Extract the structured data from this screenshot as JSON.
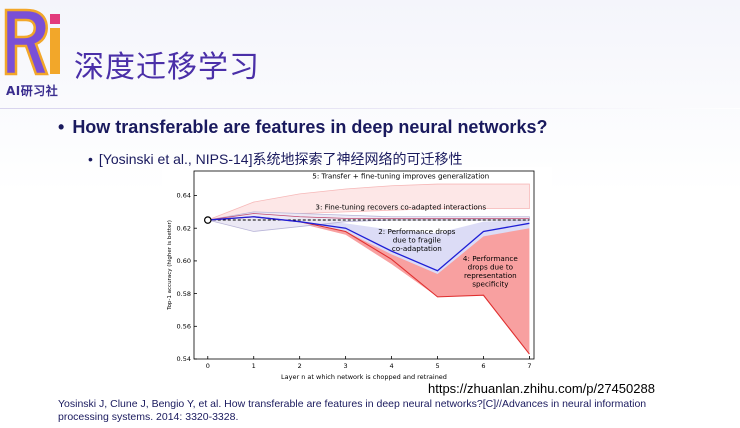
{
  "header": {
    "logo_sub": "AI研习社",
    "title": "深度迁移学习"
  },
  "bullets": {
    "main": "How transferable are features in deep neural networks?",
    "sub": "[Yosinski et al., NIPS-14]系统地探索了神经网络的可迁移性"
  },
  "url": "https://zhuanlan.zhihu.com/p/27450288",
  "citation": "Yosinski J, Clune J, Bengio Y, et al. How transferable are features in deep neural networks?[C]//Advances in neural information processing systems. 2014: 3320-3328.",
  "colors": {
    "title": "#4a2fa8",
    "bullet": "#1a1a5e",
    "red_line": "#e03030",
    "red_fill": "#f8a0a0",
    "blue_line": "#1f1fd6",
    "blue_fill": "#dcdcf6"
  },
  "chart_data": {
    "type": "line",
    "xlabel": "Layer n at which network is chopped and retrained",
    "ylabel": "Top-1 accuracy (higher is better)",
    "xlim": [
      -0.3,
      7.1
    ],
    "ylim": [
      0.54,
      0.655
    ],
    "xticks": [
      0,
      1,
      2,
      3,
      4,
      5,
      6,
      7
    ],
    "yticks": [
      0.54,
      0.56,
      0.58,
      0.6,
      0.62,
      0.64
    ],
    "ytick_labels": [
      "0.54",
      "0.56",
      "0.58",
      "0.60",
      "0.62",
      "0.64"
    ],
    "baseline": 0.625,
    "series": [
      {
        "x": [
          0,
          1,
          2,
          3,
          4,
          5,
          6,
          7
        ],
        "upper": [
          0.625,
          0.636,
          0.641,
          0.644,
          0.646,
          0.647,
          0.647,
          0.647
        ],
        "lower": [
          0.625,
          0.628,
          0.629,
          0.63,
          0.631,
          0.632,
          0.632,
          0.632
        ]
      },
      {
        "x": [
          0,
          1,
          2,
          3,
          4,
          5,
          6,
          7
        ],
        "line": [
          0.625,
          0.629,
          0.627,
          0.626,
          0.626,
          0.626,
          0.626,
          0.626
        ],
        "upper": [
          0.625,
          0.63,
          0.629,
          0.628,
          0.627,
          0.627,
          0.627,
          0.627
        ],
        "lower": [
          0.625,
          0.618,
          0.621,
          0.624,
          0.625,
          0.625,
          0.625,
          0.625
        ]
      },
      {
        "x": [
          0,
          1,
          2,
          3,
          4,
          5,
          6,
          7
        ],
        "line": [
          0.625,
          0.627,
          0.624,
          0.62,
          0.606,
          0.594,
          0.618,
          0.623
        ],
        "upper": [
          0.625,
          0.628,
          0.625,
          0.623,
          0.619,
          0.617,
          0.624,
          0.625
        ],
        "lower": [
          0.625,
          0.626,
          0.623,
          0.618,
          0.604,
          0.592,
          0.615,
          0.62
        ]
      },
      {
        "x": [
          0,
          1,
          2,
          3,
          4,
          5,
          6,
          7
        ],
        "line": [
          0.625,
          0.627,
          0.624,
          0.618,
          0.601,
          0.578,
          0.579,
          0.543
        ],
        "upper": [
          0.625,
          0.628,
          0.625,
          0.62,
          0.605,
          0.594,
          0.618,
          0.623
        ],
        "lower": [
          0.625,
          0.626,
          0.623,
          0.616,
          0.598,
          0.578,
          0.579,
          0.543
        ]
      }
    ],
    "annotations": [
      {
        "text": "5: Transfer + fine-tuning improves generalization",
        "x": 4.2,
        "y": 0.6505
      },
      {
        "text": "3: Fine-tuning recovers co-adapted interactions",
        "x": 4.2,
        "y": 0.6315
      },
      {
        "text": "2: Performance drops",
        "x": 4.55,
        "y": 0.6165
      },
      {
        "text": "due to fragile",
        "x": 4.55,
        "y": 0.6113
      },
      {
        "text": "co-adaptation",
        "x": 4.55,
        "y": 0.6061
      },
      {
        "text": "4: Performance",
        "x": 6.15,
        "y": 0.6
      },
      {
        "text": "drops due to",
        "x": 6.15,
        "y": 0.5948
      },
      {
        "text": "representation",
        "x": 6.15,
        "y": 0.5896
      },
      {
        "text": "specificity",
        "x": 6.15,
        "y": 0.5844
      }
    ]
  }
}
